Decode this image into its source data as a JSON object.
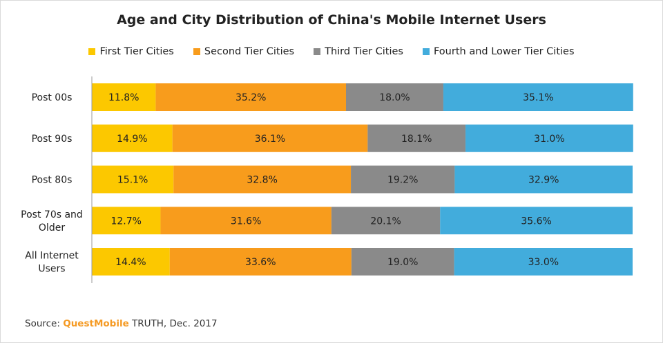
{
  "chart_data": {
    "type": "bar",
    "orientation": "horizontal",
    "stacked": true,
    "title": "Age and City Distribution of China's Mobile Internet Users",
    "categories": [
      "Post 00s",
      "Post 90s",
      "Post 80s",
      "Post 70s and Older",
      "All Internet Users"
    ],
    "category_lines": [
      [
        "Post 00s"
      ],
      [
        "Post 90s"
      ],
      [
        "Post 80s"
      ],
      [
        "Post 70s and",
        "Older"
      ],
      [
        "All Internet",
        "Users"
      ]
    ],
    "series": [
      {
        "name": "First Tier Cities",
        "color": "#fcc800",
        "values": [
          11.8,
          14.9,
          15.1,
          12.7,
          14.4
        ]
      },
      {
        "name": "Second Tier Cities",
        "color": "#f89c1c",
        "values": [
          35.2,
          36.1,
          32.8,
          31.6,
          33.6
        ]
      },
      {
        "name": "Third Tier Cities",
        "color": "#8a8a8a",
        "values": [
          18.0,
          18.1,
          19.2,
          20.1,
          19.0
        ]
      },
      {
        "name": "Fourth and Lower Tier Cities",
        "color": "#42acdc",
        "values": [
          35.1,
          31.0,
          32.9,
          35.6,
          33.0
        ]
      }
    ],
    "value_suffix": "%",
    "xlim": [
      0,
      100
    ],
    "legend_position": "top",
    "grid": false
  },
  "source": {
    "prefix": "Source: ",
    "brand": "QuestMobile",
    "suffix": " TRUTH, Dec. 2017"
  }
}
